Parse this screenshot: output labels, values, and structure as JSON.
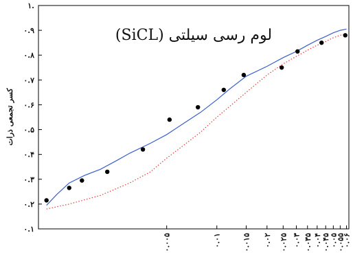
{
  "chart_data": {
    "type": "scatter",
    "title": "لوم رسی سیلتی (SiCL)",
    "xlabel": "",
    "ylabel": "کسر تجمعی ذرات",
    "x_scale": "log",
    "xlim": [
      0.00085,
      0.062
    ],
    "ylim": [
      0.1,
      1.0
    ],
    "grid": false,
    "y_ticks": [
      {
        "value": 0.1,
        "label": "۰.۱"
      },
      {
        "value": 0.2,
        "label": "۰.۲"
      },
      {
        "value": 0.3,
        "label": "۰.۳"
      },
      {
        "value": 0.4,
        "label": "۰.۴"
      },
      {
        "value": 0.5,
        "label": "۰.۵"
      },
      {
        "value": 0.6,
        "label": "۰.۶"
      },
      {
        "value": 0.7,
        "label": "۰.۷"
      },
      {
        "value": 0.8,
        "label": "۰.۸"
      },
      {
        "value": 0.9,
        "label": "۰.۹"
      },
      {
        "value": 1.0,
        "label": "۱."
      }
    ],
    "x_ticks": [
      {
        "value": 0.005,
        "label": "۰.۰۰۵"
      },
      {
        "value": 0.01,
        "label": "۰.۰۱"
      },
      {
        "value": 0.015,
        "label": "۰.۰۱۵"
      },
      {
        "value": 0.02,
        "label": "۰.۰۲"
      },
      {
        "value": 0.025,
        "label": "۰.۰۲۵"
      },
      {
        "value": 0.03,
        "label": "۰.۰۳"
      },
      {
        "value": 0.035,
        "label": "۰.۰۳۵"
      },
      {
        "value": 0.04,
        "label": "۰.۰۴"
      },
      {
        "value": 0.045,
        "label": "۰.۰۴۵"
      },
      {
        "value": 0.05,
        "label": "۰.۰۵"
      },
      {
        "value": 0.055,
        "label": "۰.۰۵۵"
      },
      {
        "value": 0.06,
        "label": "۰.۰۶"
      }
    ],
    "series": [
      {
        "kind": "points",
        "color": "#000000",
        "x": [
          0.00095,
          0.0013,
          0.00155,
          0.0022,
          0.0036,
          0.0052,
          0.0077,
          0.011,
          0.0145,
          0.0245,
          0.0305,
          0.0425,
          0.059
        ],
        "y": [
          0.215,
          0.265,
          0.295,
          0.33,
          0.42,
          0.54,
          0.59,
          0.66,
          0.72,
          0.75,
          0.815,
          0.85,
          0.88
        ]
      },
      {
        "kind": "line",
        "style": "solid",
        "color": "#3a5fcd",
        "x": [
          0.00095,
          0.0011,
          0.0013,
          0.0016,
          0.002,
          0.0025,
          0.003,
          0.004,
          0.005,
          0.006,
          0.008,
          0.01,
          0.012,
          0.015,
          0.02,
          0.025,
          0.03,
          0.035,
          0.04,
          0.045,
          0.05,
          0.055,
          0.06
        ],
        "y": [
          0.195,
          0.24,
          0.285,
          0.315,
          0.34,
          0.375,
          0.405,
          0.445,
          0.48,
          0.515,
          0.57,
          0.62,
          0.665,
          0.715,
          0.755,
          0.79,
          0.815,
          0.84,
          0.86,
          0.875,
          0.89,
          0.9,
          0.905
        ]
      },
      {
        "kind": "line",
        "style": "dotted",
        "color": "#e03c3c",
        "x": [
          0.00095,
          0.0013,
          0.002,
          0.003,
          0.004,
          0.005,
          0.006,
          0.008,
          0.01,
          0.012,
          0.015,
          0.02,
          0.025,
          0.03,
          0.035,
          0.04,
          0.045,
          0.05,
          0.055,
          0.06
        ],
        "y": [
          0.18,
          0.2,
          0.235,
          0.285,
          0.33,
          0.385,
          0.425,
          0.49,
          0.55,
          0.595,
          0.65,
          0.72,
          0.765,
          0.795,
          0.82,
          0.84,
          0.855,
          0.87,
          0.88,
          0.885
        ]
      }
    ]
  }
}
